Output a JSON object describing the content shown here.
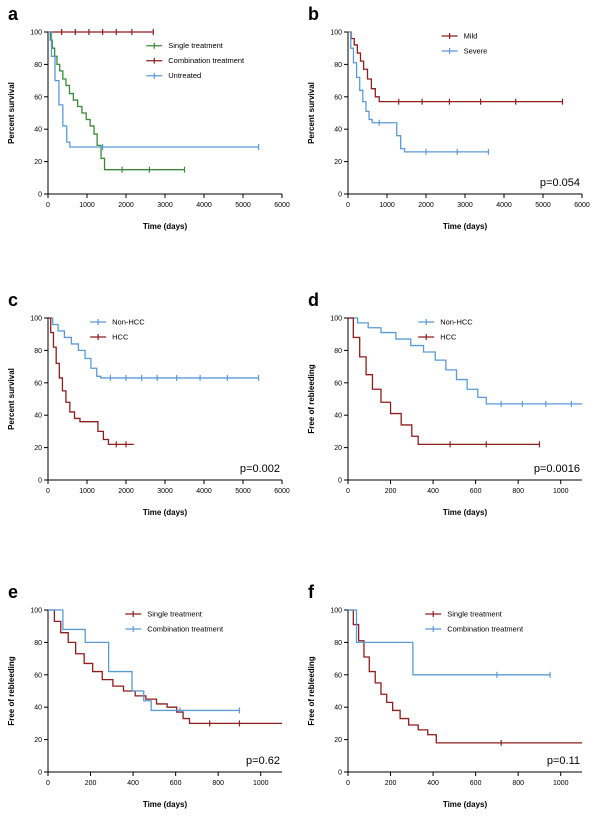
{
  "colors": {
    "green": "#3a8a3a",
    "dark_red": "#8f1d1d",
    "blue": "#5b9bd5",
    "axis": "#000000",
    "background": "#ffffff"
  },
  "chart_data": [
    {
      "type": "line",
      "subtype": "kaplan-meier-step",
      "panel_label": "a",
      "title": "",
      "xlabel": "Time (days)",
      "ylabel": "Percent survival",
      "xlim": [
        0,
        6000
      ],
      "ylim": [
        0,
        100
      ],
      "xticks": [
        0,
        1000,
        2000,
        3000,
        4000,
        5000,
        6000
      ],
      "yticks": [
        0,
        20,
        40,
        60,
        80,
        100
      ],
      "p_value": "",
      "legend": {
        "x": 0.42,
        "y": 0.06
      },
      "series": [
        {
          "name": "Single treatment",
          "color": "#3a8a3a",
          "points": [
            [
              0,
              100
            ],
            [
              60,
              95
            ],
            [
              110,
              90
            ],
            [
              170,
              85
            ],
            [
              230,
              80
            ],
            [
              300,
              76
            ],
            [
              380,
              71
            ],
            [
              460,
              67
            ],
            [
              550,
              62
            ],
            [
              650,
              58
            ],
            [
              760,
              54
            ],
            [
              870,
              50
            ],
            [
              980,
              46
            ],
            [
              1080,
              42
            ],
            [
              1180,
              37
            ],
            [
              1260,
              30
            ],
            [
              1360,
              22
            ],
            [
              1450,
              15
            ],
            [
              3500,
              15
            ]
          ],
          "censors": [
            [
              1900,
              15
            ],
            [
              2600,
              15
            ],
            [
              3500,
              15
            ]
          ]
        },
        {
          "name": "Combination treatment",
          "color": "#8f1d1d",
          "points": [
            [
              0,
              100
            ],
            [
              2700,
              100
            ]
          ],
          "censors": [
            [
              350,
              100
            ],
            [
              700,
              100
            ],
            [
              1050,
              100
            ],
            [
              1400,
              100
            ],
            [
              1750,
              100
            ],
            [
              2150,
              100
            ],
            [
              2700,
              100
            ]
          ]
        },
        {
          "name": "Untreated",
          "color": "#5b9bd5",
          "points": [
            [
              0,
              100
            ],
            [
              90,
              85
            ],
            [
              180,
              70
            ],
            [
              280,
              55
            ],
            [
              380,
              42
            ],
            [
              480,
              32
            ],
            [
              560,
              29
            ],
            [
              5400,
              29
            ]
          ],
          "censors": [
            [
              1400,
              29
            ],
            [
              5400,
              29
            ]
          ]
        }
      ]
    },
    {
      "type": "line",
      "subtype": "kaplan-meier-step",
      "panel_label": "b",
      "title": "",
      "xlabel": "Time (days)",
      "ylabel": "Percent survival",
      "xlim": [
        0,
        6000
      ],
      "ylim": [
        0,
        100
      ],
      "xticks": [
        0,
        1000,
        2000,
        3000,
        4000,
        5000,
        6000
      ],
      "yticks": [
        0,
        20,
        40,
        60,
        80,
        100
      ],
      "p_value": "p=0.054",
      "legend": {
        "x": 0.4,
        "y": 0.0
      },
      "series": [
        {
          "name": "Mild",
          "color": "#8f1d1d",
          "points": [
            [
              0,
              100
            ],
            [
              80,
              96
            ],
            [
              160,
              92
            ],
            [
              240,
              87
            ],
            [
              320,
              82
            ],
            [
              400,
              77
            ],
            [
              500,
              71
            ],
            [
              600,
              65
            ],
            [
              700,
              60
            ],
            [
              800,
              57
            ],
            [
              5500,
              57
            ]
          ],
          "censors": [
            [
              1300,
              57
            ],
            [
              1900,
              57
            ],
            [
              2600,
              57
            ],
            [
              3400,
              57
            ],
            [
              4300,
              57
            ],
            [
              5500,
              57
            ]
          ]
        },
        {
          "name": "Severe",
          "color": "#5b9bd5",
          "points": [
            [
              0,
              100
            ],
            [
              70,
              90
            ],
            [
              140,
              81
            ],
            [
              220,
              72
            ],
            [
              300,
              64
            ],
            [
              380,
              57
            ],
            [
              460,
              51
            ],
            [
              540,
              46
            ],
            [
              620,
              44
            ],
            [
              1150,
              44
            ],
            [
              1250,
              36
            ],
            [
              1350,
              28
            ],
            [
              1450,
              26
            ],
            [
              3600,
              26
            ]
          ],
          "censors": [
            [
              800,
              44
            ],
            [
              2000,
              26
            ],
            [
              2800,
              26
            ],
            [
              3600,
              26
            ]
          ]
        }
      ]
    },
    {
      "type": "line",
      "subtype": "kaplan-meier-step",
      "panel_label": "c",
      "title": "",
      "xlabel": "Time (days)",
      "ylabel": "Percent survival",
      "xlim": [
        0,
        6000
      ],
      "ylim": [
        0,
        100
      ],
      "xticks": [
        0,
        1000,
        2000,
        3000,
        4000,
        5000,
        6000
      ],
      "yticks": [
        0,
        20,
        40,
        60,
        80,
        100
      ],
      "p_value": "p=0.002",
      "legend": {
        "x": 0.18,
        "y": 0.0
      },
      "series": [
        {
          "name": "Non-HCC",
          "color": "#5b9bd5",
          "points": [
            [
              0,
              100
            ],
            [
              120,
              96
            ],
            [
              260,
              92
            ],
            [
              420,
              88
            ],
            [
              600,
              84
            ],
            [
              780,
              80
            ],
            [
              950,
              75
            ],
            [
              1100,
              69
            ],
            [
              1250,
              64
            ],
            [
              1350,
              63
            ],
            [
              5400,
              63
            ]
          ],
          "censors": [
            [
              1600,
              63
            ],
            [
              2000,
              63
            ],
            [
              2400,
              63
            ],
            [
              2800,
              63
            ],
            [
              3300,
              63
            ],
            [
              3900,
              63
            ],
            [
              4600,
              63
            ],
            [
              5400,
              63
            ]
          ]
        },
        {
          "name": "HCC",
          "color": "#8f1d1d",
          "points": [
            [
              0,
              100
            ],
            [
              70,
              91
            ],
            [
              140,
              82
            ],
            [
              210,
              72
            ],
            [
              290,
              63
            ],
            [
              370,
              55
            ],
            [
              460,
              48
            ],
            [
              560,
              42
            ],
            [
              680,
              38
            ],
            [
              820,
              36
            ],
            [
              1150,
              36
            ],
            [
              1280,
              30
            ],
            [
              1420,
              25
            ],
            [
              1550,
              22
            ],
            [
              2200,
              22
            ]
          ],
          "censors": [
            [
              1750,
              22
            ],
            [
              2000,
              22
            ]
          ]
        }
      ]
    },
    {
      "type": "line",
      "subtype": "kaplan-meier-step",
      "panel_label": "d",
      "title": "",
      "xlabel": "Time (days)",
      "ylabel": "Free of rebleeding",
      "xlim": [
        0,
        1100
      ],
      "ylim": [
        0,
        100
      ],
      "xticks": [
        0,
        200,
        400,
        600,
        800,
        1000
      ],
      "yticks": [
        0,
        20,
        40,
        60,
        80,
        100
      ],
      "p_value": "p=0.0016",
      "legend": {
        "x": 0.3,
        "y": 0.0
      },
      "series": [
        {
          "name": "Non-HCC",
          "color": "#5b9bd5",
          "points": [
            [
              0,
              100
            ],
            [
              45,
              97
            ],
            [
              95,
              94
            ],
            [
              155,
              91
            ],
            [
              225,
              87
            ],
            [
              295,
              83
            ],
            [
              355,
              79
            ],
            [
              410,
              74
            ],
            [
              460,
              68
            ],
            [
              510,
              62
            ],
            [
              560,
              56
            ],
            [
              610,
              51
            ],
            [
              650,
              47
            ],
            [
              1100,
              47
            ]
          ],
          "censors": [
            [
              720,
              47
            ],
            [
              820,
              47
            ],
            [
              930,
              47
            ],
            [
              1050,
              47
            ]
          ]
        },
        {
          "name": "HCC",
          "color": "#8f1d1d",
          "points": [
            [
              0,
              100
            ],
            [
              25,
              88
            ],
            [
              55,
              76
            ],
            [
              85,
              65
            ],
            [
              115,
              56
            ],
            [
              155,
              48
            ],
            [
              200,
              41
            ],
            [
              250,
              34
            ],
            [
              300,
              27
            ],
            [
              330,
              22
            ],
            [
              900,
              22
            ]
          ],
          "censors": [
            [
              480,
              22
            ],
            [
              650,
              22
            ],
            [
              900,
              22
            ]
          ]
        }
      ]
    },
    {
      "type": "line",
      "subtype": "kaplan-meier-step",
      "panel_label": "e",
      "title": "",
      "xlabel": "Time (days)",
      "ylabel": "Free of rebleeding",
      "xlim": [
        0,
        1100
      ],
      "ylim": [
        0,
        100
      ],
      "xticks": [
        0,
        200,
        400,
        600,
        800,
        1000
      ],
      "yticks": [
        0,
        20,
        40,
        60,
        80,
        100
      ],
      "p_value": "p=0.62",
      "legend": {
        "x": 0.33,
        "y": 0.0
      },
      "series": [
        {
          "name": "Single treatment",
          "color": "#8f1d1d",
          "points": [
            [
              0,
              100
            ],
            [
              30,
              93
            ],
            [
              60,
              86
            ],
            [
              95,
              80
            ],
            [
              130,
              73
            ],
            [
              170,
              67
            ],
            [
              210,
              62
            ],
            [
              255,
              57
            ],
            [
              305,
              53
            ],
            [
              355,
              50
            ],
            [
              410,
              47
            ],
            [
              460,
              45
            ],
            [
              510,
              42
            ],
            [
              560,
              40
            ],
            [
              605,
              37
            ],
            [
              635,
              33
            ],
            [
              665,
              30
            ],
            [
              1100,
              30
            ]
          ],
          "censors": [
            [
              760,
              30
            ],
            [
              900,
              30
            ]
          ]
        },
        {
          "name": "Combination treatment",
          "color": "#5b9bd5",
          "points": [
            [
              0,
              100
            ],
            [
              70,
              88
            ],
            [
              175,
              80
            ],
            [
              285,
              62
            ],
            [
              395,
              50
            ],
            [
              450,
              44
            ],
            [
              485,
              38
            ],
            [
              900,
              38
            ]
          ],
          "censors": [
            [
              620,
              38
            ],
            [
              900,
              38
            ]
          ]
        }
      ]
    },
    {
      "type": "line",
      "subtype": "kaplan-meier-step",
      "panel_label": "f",
      "title": "",
      "xlabel": "Time (days)",
      "ylabel": "Free of rebleeding",
      "xlim": [
        0,
        1100
      ],
      "ylim": [
        0,
        100
      ],
      "xticks": [
        0,
        200,
        400,
        600,
        800,
        1000
      ],
      "yticks": [
        0,
        20,
        40,
        60,
        80,
        100
      ],
      "p_value": "p=0.11",
      "legend": {
        "x": 0.33,
        "y": 0.0
      },
      "series": [
        {
          "name": "Single treatment",
          "color": "#8f1d1d",
          "points": [
            [
              0,
              100
            ],
            [
              25,
              91
            ],
            [
              50,
              81
            ],
            [
              75,
              71
            ],
            [
              100,
              62
            ],
            [
              128,
              55
            ],
            [
              155,
              48
            ],
            [
              182,
              43
            ],
            [
              210,
              38
            ],
            [
              245,
              33
            ],
            [
              285,
              29
            ],
            [
              330,
              26
            ],
            [
              375,
              23
            ],
            [
              415,
              18
            ],
            [
              1100,
              18
            ]
          ],
          "censors": [
            [
              720,
              18
            ]
          ]
        },
        {
          "name": "Combination treatment",
          "color": "#5b9bd5",
          "points": [
            [
              0,
              100
            ],
            [
              40,
              80
            ],
            [
              295,
              80
            ],
            [
              305,
              60
            ],
            [
              950,
              60
            ]
          ],
          "censors": [
            [
              700,
              60
            ],
            [
              950,
              60
            ]
          ]
        }
      ]
    }
  ]
}
